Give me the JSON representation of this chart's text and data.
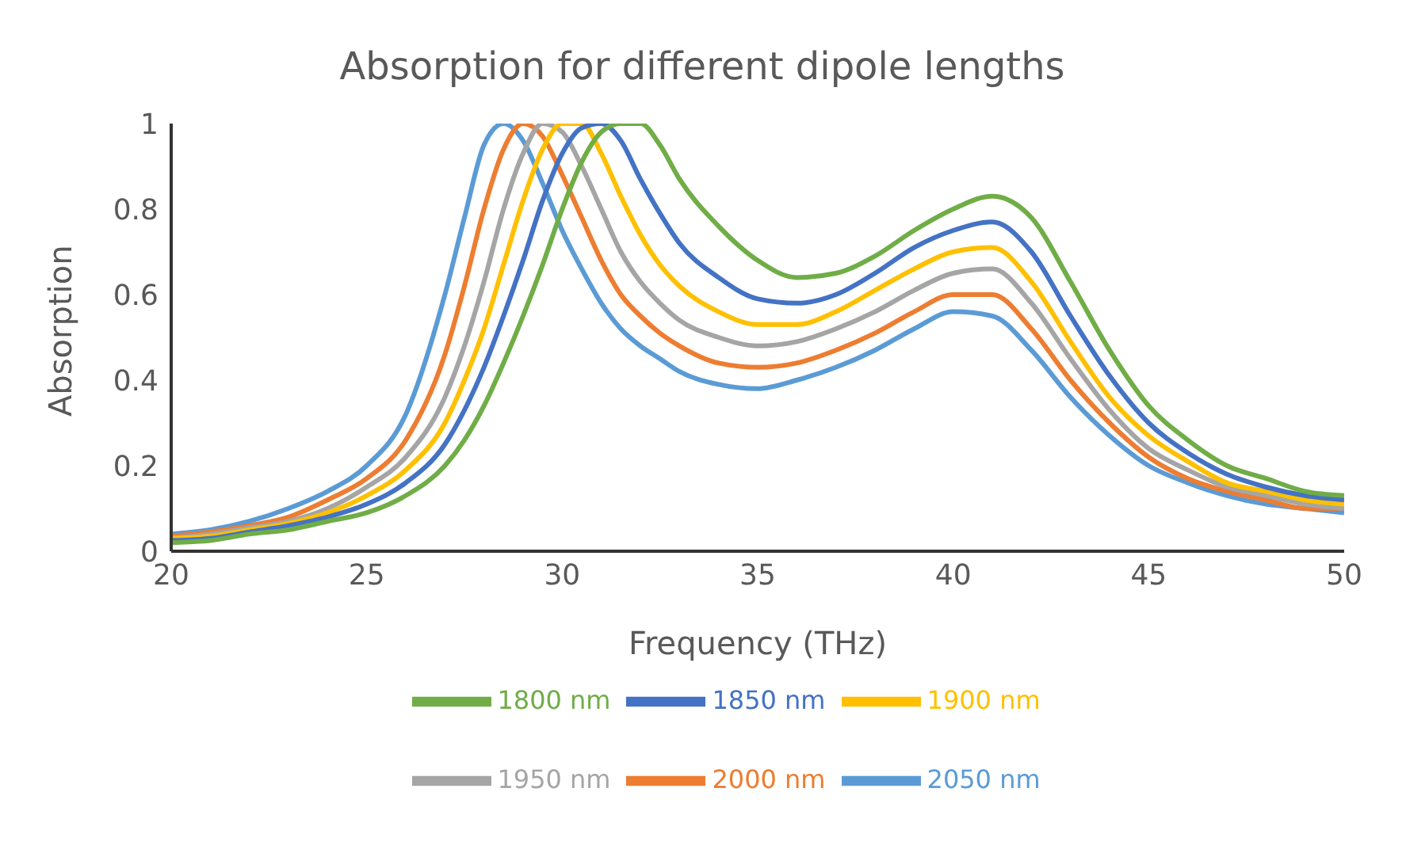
{
  "chart_data": {
    "type": "line",
    "title": "Absorption for different dipole lengths",
    "xlabel": "Frequency (THz)",
    "ylabel": "Absorption",
    "x": [
      20,
      21,
      22,
      23,
      24,
      25,
      26,
      27,
      27.5,
      28,
      28.5,
      29,
      29.5,
      30,
      30.5,
      31,
      31.5,
      32,
      32.5,
      33,
      34,
      35,
      36,
      37,
      38,
      39,
      40,
      41,
      42,
      43,
      44,
      45,
      46,
      47,
      48,
      49,
      50
    ],
    "series": [
      {
        "name": "2050 nm",
        "color": "#5b9bd5",
        "values": [
          0.04,
          0.05,
          0.07,
          0.1,
          0.14,
          0.2,
          0.32,
          0.6,
          0.78,
          0.95,
          1.0,
          0.96,
          0.86,
          0.75,
          0.66,
          0.58,
          0.52,
          0.48,
          0.45,
          0.42,
          0.39,
          0.38,
          0.4,
          0.43,
          0.47,
          0.52,
          0.56,
          0.55,
          0.47,
          0.36,
          0.27,
          0.2,
          0.16,
          0.13,
          0.11,
          0.1,
          0.09
        ]
      },
      {
        "name": "2000 nm",
        "color": "#ed7d31",
        "values": [
          0.035,
          0.045,
          0.06,
          0.08,
          0.12,
          0.17,
          0.26,
          0.46,
          0.62,
          0.8,
          0.94,
          1.0,
          0.97,
          0.88,
          0.78,
          0.68,
          0.6,
          0.55,
          0.51,
          0.48,
          0.44,
          0.43,
          0.44,
          0.47,
          0.51,
          0.56,
          0.6,
          0.6,
          0.52,
          0.4,
          0.3,
          0.22,
          0.17,
          0.14,
          0.12,
          0.1,
          0.1
        ]
      },
      {
        "name": "1950 nm",
        "color": "#a5a5a5",
        "values": [
          0.03,
          0.04,
          0.055,
          0.07,
          0.1,
          0.15,
          0.22,
          0.36,
          0.48,
          0.63,
          0.8,
          0.93,
          1.0,
          0.98,
          0.9,
          0.8,
          0.7,
          0.63,
          0.58,
          0.54,
          0.5,
          0.48,
          0.49,
          0.52,
          0.56,
          0.61,
          0.65,
          0.66,
          0.58,
          0.45,
          0.33,
          0.24,
          0.19,
          0.15,
          0.13,
          0.11,
          0.1
        ]
      },
      {
        "name": "1900 nm",
        "color": "#ffc000",
        "values": [
          0.03,
          0.035,
          0.05,
          0.065,
          0.09,
          0.13,
          0.19,
          0.3,
          0.4,
          0.52,
          0.67,
          0.82,
          0.94,
          1.0,
          1.0,
          0.93,
          0.83,
          0.74,
          0.67,
          0.62,
          0.56,
          0.53,
          0.53,
          0.56,
          0.61,
          0.66,
          0.7,
          0.71,
          0.63,
          0.49,
          0.36,
          0.27,
          0.21,
          0.16,
          0.14,
          0.12,
          0.11
        ]
      },
      {
        "name": "1850 nm",
        "color": "#4472c4",
        "values": [
          0.025,
          0.03,
          0.045,
          0.06,
          0.08,
          0.11,
          0.16,
          0.25,
          0.33,
          0.43,
          0.55,
          0.68,
          0.82,
          0.93,
          0.99,
          1.0,
          0.96,
          0.87,
          0.79,
          0.72,
          0.64,
          0.59,
          0.58,
          0.6,
          0.65,
          0.71,
          0.75,
          0.77,
          0.7,
          0.55,
          0.41,
          0.3,
          0.23,
          0.18,
          0.15,
          0.13,
          0.12
        ]
      },
      {
        "name": "1800 nm",
        "color": "#70ad47",
        "values": [
          0.02,
          0.025,
          0.04,
          0.05,
          0.07,
          0.09,
          0.13,
          0.2,
          0.26,
          0.34,
          0.44,
          0.55,
          0.67,
          0.8,
          0.91,
          0.98,
          1.0,
          1.0,
          0.95,
          0.87,
          0.76,
          0.68,
          0.64,
          0.65,
          0.69,
          0.75,
          0.8,
          0.83,
          0.78,
          0.63,
          0.47,
          0.34,
          0.26,
          0.2,
          0.17,
          0.14,
          0.13
        ]
      }
    ],
    "xlim": [
      20,
      50
    ],
    "xticks": [
      20,
      25,
      30,
      35,
      40,
      45,
      50
    ],
    "ylim": [
      0,
      1
    ],
    "yticks": [
      0,
      {
        "value": 0.2,
        "label": "0.2"
      },
      {
        "value": 0.4,
        "label": "0.4"
      },
      {
        "value": 0.6,
        "label": "0.6"
      },
      {
        "value": 0.8,
        "label": "0.8"
      },
      1
    ],
    "grid": false,
    "legend": "bottom",
    "marker": "none",
    "line_style": "solid"
  }
}
